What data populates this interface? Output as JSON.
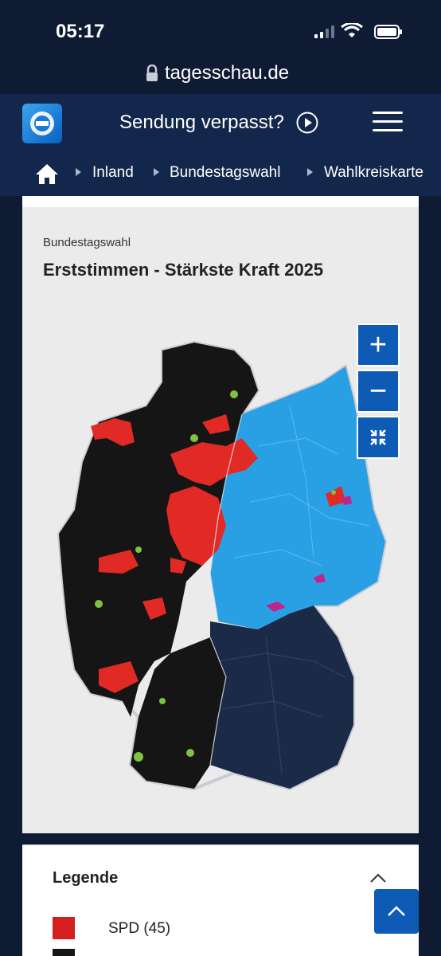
{
  "status": {
    "time": "05:17"
  },
  "browser": {
    "url": "tagesschau.de"
  },
  "header": {
    "sendung_label": "Sendung verpasst?"
  },
  "breadcrumb": {
    "items": [
      "Inland",
      "Bundestagswahl",
      "Wahlkreiskarte"
    ]
  },
  "card": {
    "kicker": "Bundestagswahl",
    "title": "Erststimmen - Stärkste Kraft 2025"
  },
  "map": {
    "zoom_in_label": "+",
    "zoom_out_label": "−",
    "colors": {
      "spd": "#e12a26",
      "cdu": "#151515",
      "afd": "#29a0e4",
      "csu": "#1b2a47",
      "gruene": "#7fc241",
      "linke": "#c0238a"
    }
  },
  "legend": {
    "title": "Legende",
    "items": [
      {
        "label": "SPD (45)",
        "color": "#d51f1f"
      },
      {
        "label": "",
        "color": "#151515"
      }
    ]
  },
  "icons": [
    "home-icon",
    "lock-icon",
    "play-icon",
    "menu-icon",
    "reset-zoom-icon",
    "chevron-up-icon",
    "arrow-up-icon"
  ]
}
